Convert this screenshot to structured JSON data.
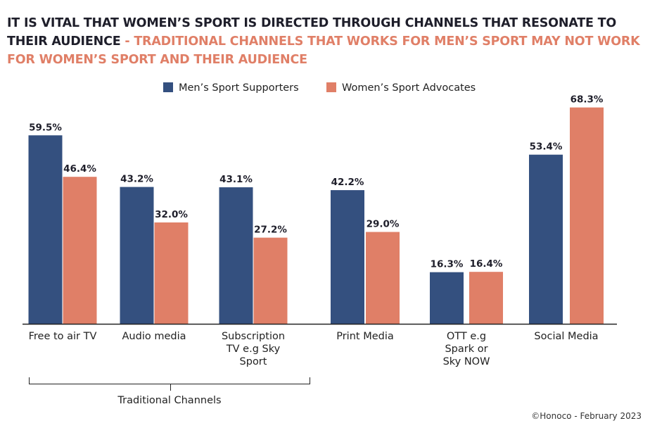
{
  "title": {
    "part1": "IT IS VITAL THAT WOMEN’S SPORT IS DIRECTED THROUGH CHANNELS THAT RESONATE TO THEIR AUDIENCE",
    "part2": " - TRADITIONAL CHANNELS THAT WORKS FOR MEN’S SPORT MAY NOT WORK FOR WOMEN’S SPORT AND THEIR AUDIENCE"
  },
  "footer": "©Honoco - February 2023",
  "colors": {
    "men": "#34507f",
    "women": "#e07f67"
  },
  "chart_data": {
    "type": "bar",
    "categories": [
      [
        "Free to air TV"
      ],
      [
        "Audio media"
      ],
      [
        "Subscription",
        "TV e.g Sky",
        "Sport"
      ],
      [
        "Print Media"
      ],
      [
        "OTT e.g",
        "Spark or",
        "Sky NOW"
      ],
      [
        "Social Media"
      ]
    ],
    "series": [
      {
        "name": "Men’s Sport Supporters",
        "values": [
          59.5,
          43.2,
          43.1,
          42.2,
          16.3,
          53.4
        ],
        "labels": [
          "59.5%",
          "43.2%",
          "43.1%",
          "42.2%",
          "16.3%",
          "53.4%"
        ]
      },
      {
        "name": "Women’s Sport Advocates",
        "values": [
          46.4,
          32.0,
          27.2,
          29.0,
          16.4,
          68.3
        ],
        "labels": [
          "46.4%",
          "32.0%",
          "27.2%",
          "29.0%",
          "16.4%",
          "68.3%"
        ]
      }
    ],
    "ylim": [
      0,
      70
    ],
    "legend": "top-center",
    "grid": false,
    "group_annotation": {
      "label": "Traditional Channels",
      "categories": [
        0,
        1,
        2
      ]
    }
  }
}
